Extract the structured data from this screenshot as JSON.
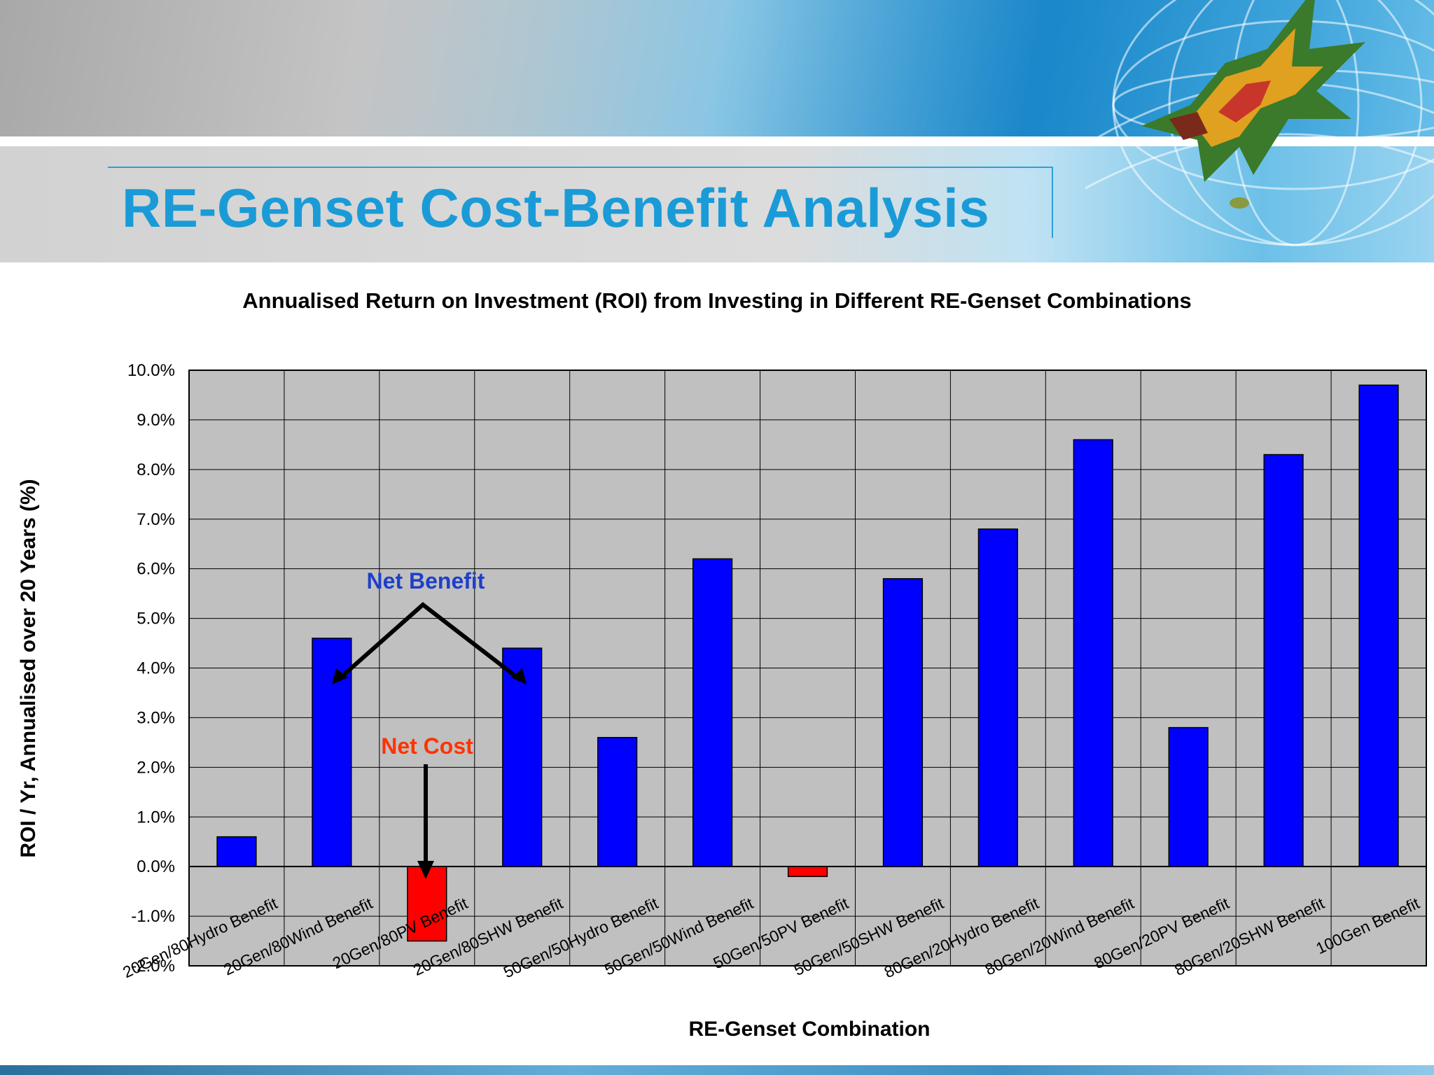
{
  "slide": {
    "title": "RE-Genset Cost-Benefit Analysis"
  },
  "annotations": {
    "net_benefit": "Net Benefit",
    "net_cost": "Net Cost"
  },
  "colors": {
    "benefit_bar": "#0000ff",
    "cost_bar": "#ff0000",
    "plot_background": "#c0c0c0",
    "title_blue": "#1a9bd7",
    "net_benefit_text": "#1f3fc8",
    "net_cost_text": "#ff3300"
  },
  "chart_data": {
    "type": "bar",
    "title": "Annualised Return on Investment (ROI) from Investing in Different RE-Genset Combinations",
    "xlabel": "RE-Genset Combination",
    "ylabel": "ROI / Yr, Annualised over 20 Years (%)",
    "ylim": [
      -2.0,
      10.0
    ],
    "grid": true,
    "yticks": [
      "10.0%",
      "9.0%",
      "8.0%",
      "7.0%",
      "6.0%",
      "5.0%",
      "4.0%",
      "3.0%",
      "2.0%",
      "1.0%",
      "0.0%",
      "-1.0%",
      "-2.0%"
    ],
    "categories": [
      "20Gen/80Hydro Benefit",
      "20Gen/80Wind Benefit",
      "20Gen/80PV Benefit",
      "20Gen/80SHW Benefit",
      "50Gen/50Hydro Benefit",
      "50Gen/50Wind Benefit",
      "50Gen/50PV Benefit",
      "50Gen/50SHW Benefit",
      "80Gen/20Hydro Benefit",
      "80Gen/20Wind Benefit",
      "80Gen/20PV Benefit",
      "80Gen/20SHW Benefit",
      "100Gen Benefit"
    ],
    "values": [
      0.6,
      4.6,
      -1.5,
      4.4,
      2.6,
      6.2,
      -0.2,
      5.8,
      6.8,
      8.6,
      2.8,
      8.3,
      9.7
    ]
  }
}
